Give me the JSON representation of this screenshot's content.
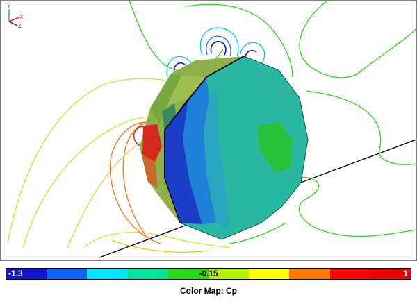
{
  "viewport": {
    "axis_triad": {
      "x_label": "X",
      "y_label": "Y",
      "z_label": "Z"
    }
  },
  "colorbar": {
    "min_label": "-1.3",
    "mid_label": "-0.15",
    "max_label": "1",
    "title": "Color Map: Cp",
    "swatches": [
      "#1414d2",
      "#0a64ff",
      "#00e6ff",
      "#00e6a0",
      "#28dc14",
      "#b4f000",
      "#ffff00",
      "#ff7800",
      "#ff0000",
      "#e60000"
    ]
  },
  "colors": {
    "background": "#ffffff",
    "contour_green": "#28dc14",
    "contour_yellow": "#c8e632",
    "contour_orange": "#ff7820",
    "contour_red": "#e61e1e",
    "contour_cyan": "#00c8ff",
    "contour_blue": "#1414d2",
    "body_face": "#2ab7a2",
    "body_edge": "#000000"
  }
}
